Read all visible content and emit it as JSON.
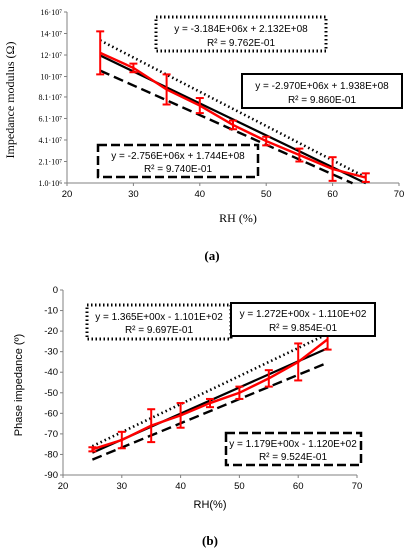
{
  "chart_data": [
    {
      "panel_label": "(a)",
      "type": "line",
      "xlabel": "RH (%)",
      "ylabel": "Impedance modulus (Ω)",
      "xlim": [
        20,
        70
      ],
      "ylim": [
        1000000,
        160000000
      ],
      "x_ticks": [
        "20",
        "30",
        "40",
        "50",
        "60",
        "70"
      ],
      "y_ticks": [
        {
          "value": 160000000,
          "label": "16·10⁷"
        },
        {
          "value": 140000000,
          "label": "14·10⁷"
        },
        {
          "value": 120000000,
          "label": "12·10⁷"
        },
        {
          "value": 100000000,
          "label": "10·10⁷"
        },
        {
          "value": 81000000,
          "label": "8.1·10⁷"
        },
        {
          "value": 61000000,
          "label": "6.1·10⁷"
        },
        {
          "value": 41000000,
          "label": "4.1·10⁷"
        },
        {
          "value": 21000000,
          "label": "2.1·10⁷"
        },
        {
          "value": 1000000,
          "label": "1.0·10⁶"
        }
      ],
      "grid": false,
      "measured": {
        "color": "#ff0000",
        "x": [
          25,
          30,
          35,
          40,
          45,
          50,
          55,
          60,
          65
        ],
        "y": [
          122000000,
          108000000,
          88000000,
          73000000,
          55000000,
          40000000,
          27000000,
          14000000,
          6000000
        ],
        "err": [
          20000000,
          4000000,
          14000000,
          7000000,
          4000000,
          4000000,
          6000000,
          11000000,
          4000000
        ]
      },
      "fits": [
        {
          "style": "dotted",
          "slope": -3184000,
          "intercept": 213200000,
          "x_range": [
            25,
            65
          ],
          "equation": "y = -3.184E+06x + 2.132E+08",
          "r2": "R² = 9.762E-01"
        },
        {
          "style": "solid",
          "slope": -2970000,
          "intercept": 193800000,
          "x_range": [
            25,
            65
          ],
          "equation": "y = -2.970E+06x + 1.938E+08",
          "r2": "R² = 9.860E-01"
        },
        {
          "style": "dashed",
          "slope": -2756000,
          "intercept": 174400000,
          "x_range": [
            25,
            63
          ],
          "equation": "y = -2.756E+06x + 1.744E+08",
          "r2": "R² = 9.740E-01"
        }
      ]
    },
    {
      "panel_label": "(b)",
      "type": "line",
      "xlabel": "RH(%)",
      "ylabel": "Phase impedance (º)",
      "xlim": [
        20,
        70
      ],
      "ylim": [
        -90,
        0
      ],
      "x_ticks": [
        "20",
        "30",
        "40",
        "50",
        "60",
        "70"
      ],
      "y_ticks": [
        {
          "value": 0,
          "label": "0"
        },
        {
          "value": -10,
          "label": "-10"
        },
        {
          "value": -20,
          "label": "-20"
        },
        {
          "value": -30,
          "label": "-30"
        },
        {
          "value": -40,
          "label": "-40"
        },
        {
          "value": -50,
          "label": "-50"
        },
        {
          "value": -60,
          "label": "-60"
        },
        {
          "value": -70,
          "label": "-70"
        },
        {
          "value": -80,
          "label": "-80"
        },
        {
          "value": -90,
          "label": "-90"
        }
      ],
      "grid": false,
      "measured": {
        "color": "#ff0000",
        "x": [
          25,
          30,
          35,
          40,
          45,
          50,
          55,
          60,
          65
        ],
        "y": [
          -77.5,
          -73,
          -66,
          -61,
          -55,
          -50,
          -43,
          -35,
          -24
        ],
        "err": [
          1,
          4,
          8,
          6,
          2,
          3,
          4,
          9,
          5
        ]
      },
      "fits": [
        {
          "style": "dotted",
          "slope": 1.365,
          "intercept": -110.1,
          "x_range": [
            25,
            65
          ],
          "equation": "y = 1.365E+00x - 1.101E+02",
          "r2": "R² = 9.697E-01"
        },
        {
          "style": "solid",
          "slope": 1.272,
          "intercept": -111.0,
          "x_range": [
            25,
            65
          ],
          "equation": "y = 1.272E+00x - 1.110E+02",
          "r2": "R² = 9.854E-01"
        },
        {
          "style": "dashed",
          "slope": 1.179,
          "intercept": -112.0,
          "x_range": [
            25,
            65
          ],
          "equation": "y = 1.179E+00x - 1.120E+02",
          "r2": "R² = 9.524E-01"
        }
      ]
    }
  ]
}
